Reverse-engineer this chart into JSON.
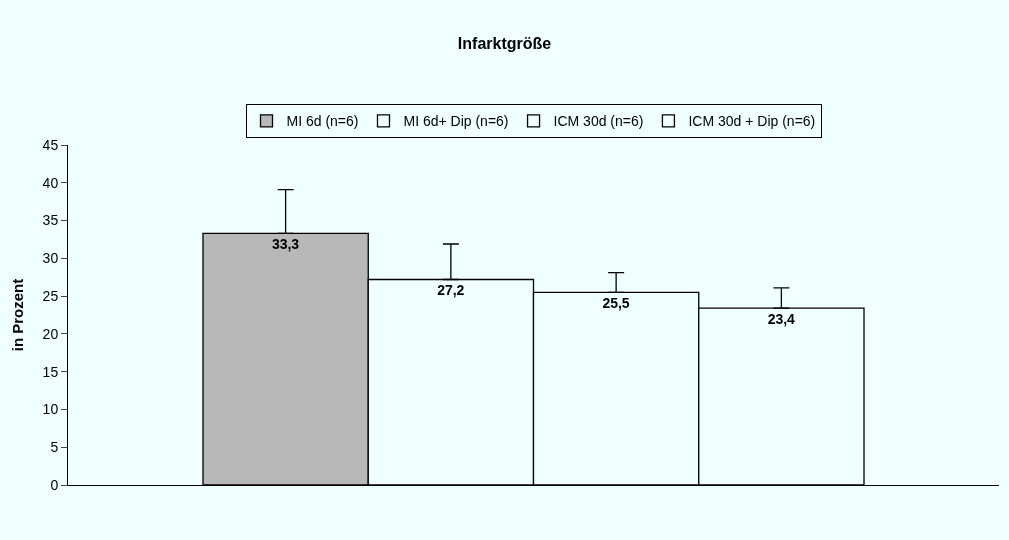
{
  "chart_data": {
    "type": "bar",
    "title": "Infarktgröße",
    "ylabel": "in Prozent",
    "categories": [
      null
    ],
    "series": [
      {
        "name": "MI 6d (n=6)",
        "color": "#b8b8b8",
        "values": [
          33.3
        ],
        "errors": [
          [
            33.3,
            39.1
          ]
        ],
        "value_labels": [
          "33,3"
        ]
      },
      {
        "name": "MI 6d+ Dip (n=6)",
        "color": "#f0ffff",
        "values": [
          27.2
        ],
        "errors": [
          [
            27.2,
            31.9
          ]
        ],
        "value_labels": [
          "27,2"
        ]
      },
      {
        "name": "ICM 30d (n=6)",
        "color": "#f0ffff",
        "values": [
          25.5
        ],
        "errors": [
          [
            25.5,
            28.1
          ]
        ],
        "value_labels": [
          "25,5"
        ]
      },
      {
        "name": "ICM 30d + Dip (n=6)",
        "color": "#f0ffff",
        "values": [
          23.4
        ],
        "errors": [
          [
            23.4,
            26.1
          ]
        ],
        "value_labels": [
          "23,4"
        ]
      }
    ],
    "ylim": [
      0,
      45
    ],
    "yticks": [
      0,
      5,
      10,
      15,
      20,
      25,
      30,
      35,
      40,
      45
    ],
    "grid": false,
    "legend": "top"
  }
}
